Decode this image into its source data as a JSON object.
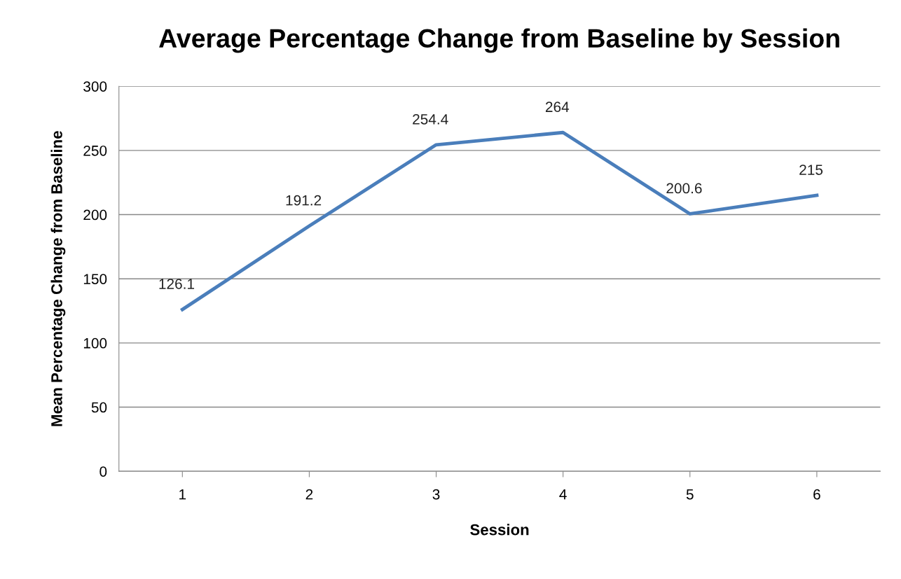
{
  "chart_data": {
    "type": "line",
    "title": "Average Percentage Change from Baseline by Session",
    "xlabel": "Session",
    "ylabel": "Mean Percentage Change from Baseline",
    "categories": [
      "1",
      "2",
      "3",
      "4",
      "5",
      "6"
    ],
    "series": [
      {
        "color": "#4a7ebb",
        "values": [
          126.1,
          191.2,
          254.4,
          264,
          200.6,
          215
        ]
      }
    ],
    "ylim": [
      0,
      300
    ],
    "yticks": [
      0,
      50,
      100,
      150,
      200,
      250,
      300
    ],
    "grid": "y",
    "marker": "none",
    "line_style": "solid",
    "data_labels": true
  }
}
